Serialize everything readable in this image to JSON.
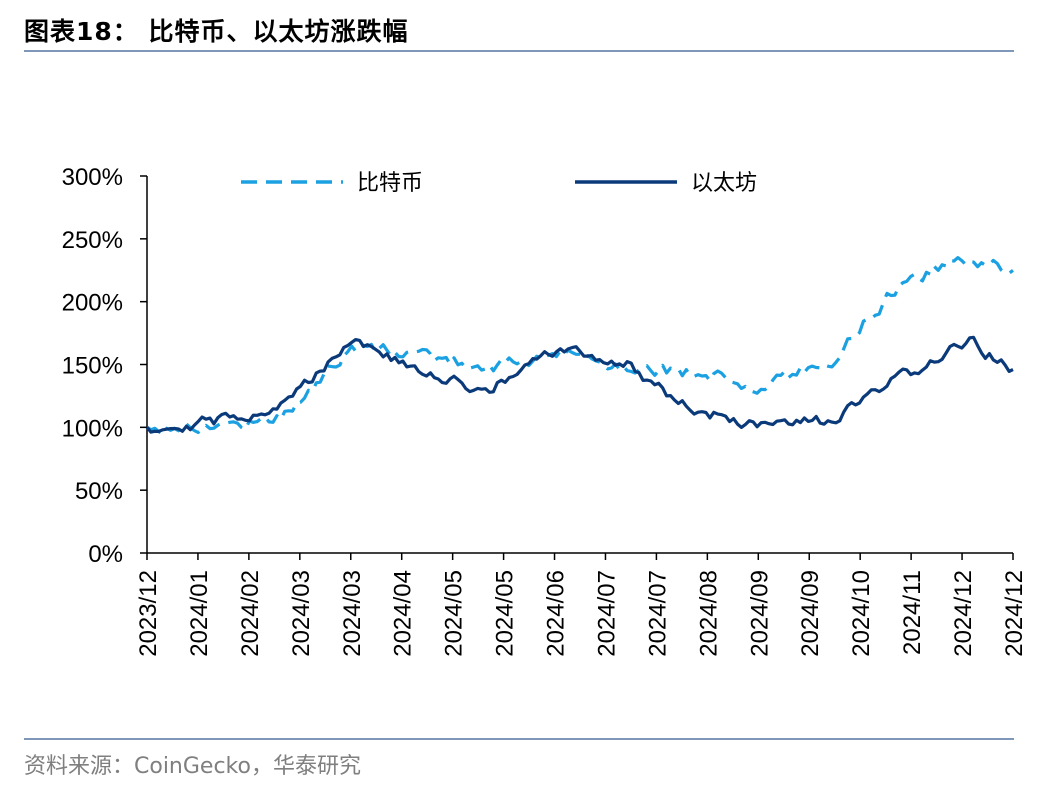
{
  "figure": {
    "title": "图表18： 比特币、以太坊涨跌幅",
    "source": "资料来源：CoinGecko，华泰研究"
  },
  "chart_data": {
    "type": "line",
    "title": "",
    "xlabel": "",
    "ylabel": "",
    "ylim": [
      0,
      300
    ],
    "y_unit": "%",
    "y_ticks": [
      0,
      50,
      100,
      150,
      200,
      250,
      300
    ],
    "y_tick_labels": [
      "0%",
      "50%",
      "100%",
      "150%",
      "200%",
      "250%",
      "300%"
    ],
    "x_tick_labels": [
      "2023/12",
      "2024/01",
      "2024/02",
      "2024/03",
      "2024/03",
      "2024/04",
      "2024/05",
      "2024/05",
      "2024/06",
      "2024/07",
      "2024/07",
      "2024/08",
      "2024/09",
      "2024/09",
      "2024/10",
      "2024/11",
      "2024/12",
      "2024/12"
    ],
    "x": [
      "2023-12-13",
      "2024-01-12",
      "2024-02-11",
      "2024-03-12",
      "2024-04-11",
      "2024-05-11",
      "2024-06-10",
      "2024-07-10",
      "2024-08-09",
      "2024-09-08",
      "2024-10-08",
      "2024-11-07",
      "2024-12-07",
      "2024-12-26"
    ],
    "legend": "top",
    "grid": false,
    "series": [
      {
        "name": "比特币",
        "color": "#1ba1e2",
        "style": "dashed",
        "values": [
          100,
          100,
          110,
          163,
          158,
          148,
          158,
          150,
          143,
          133,
          155,
          215,
          235,
          225
        ]
      },
      {
        "name": "以太坊",
        "color": "#0b3a7a",
        "style": "solid",
        "values": [
          100,
          105,
          118,
          172,
          142,
          130,
          162,
          150,
          113,
          100,
          105,
          140,
          168,
          146
        ]
      }
    ]
  }
}
